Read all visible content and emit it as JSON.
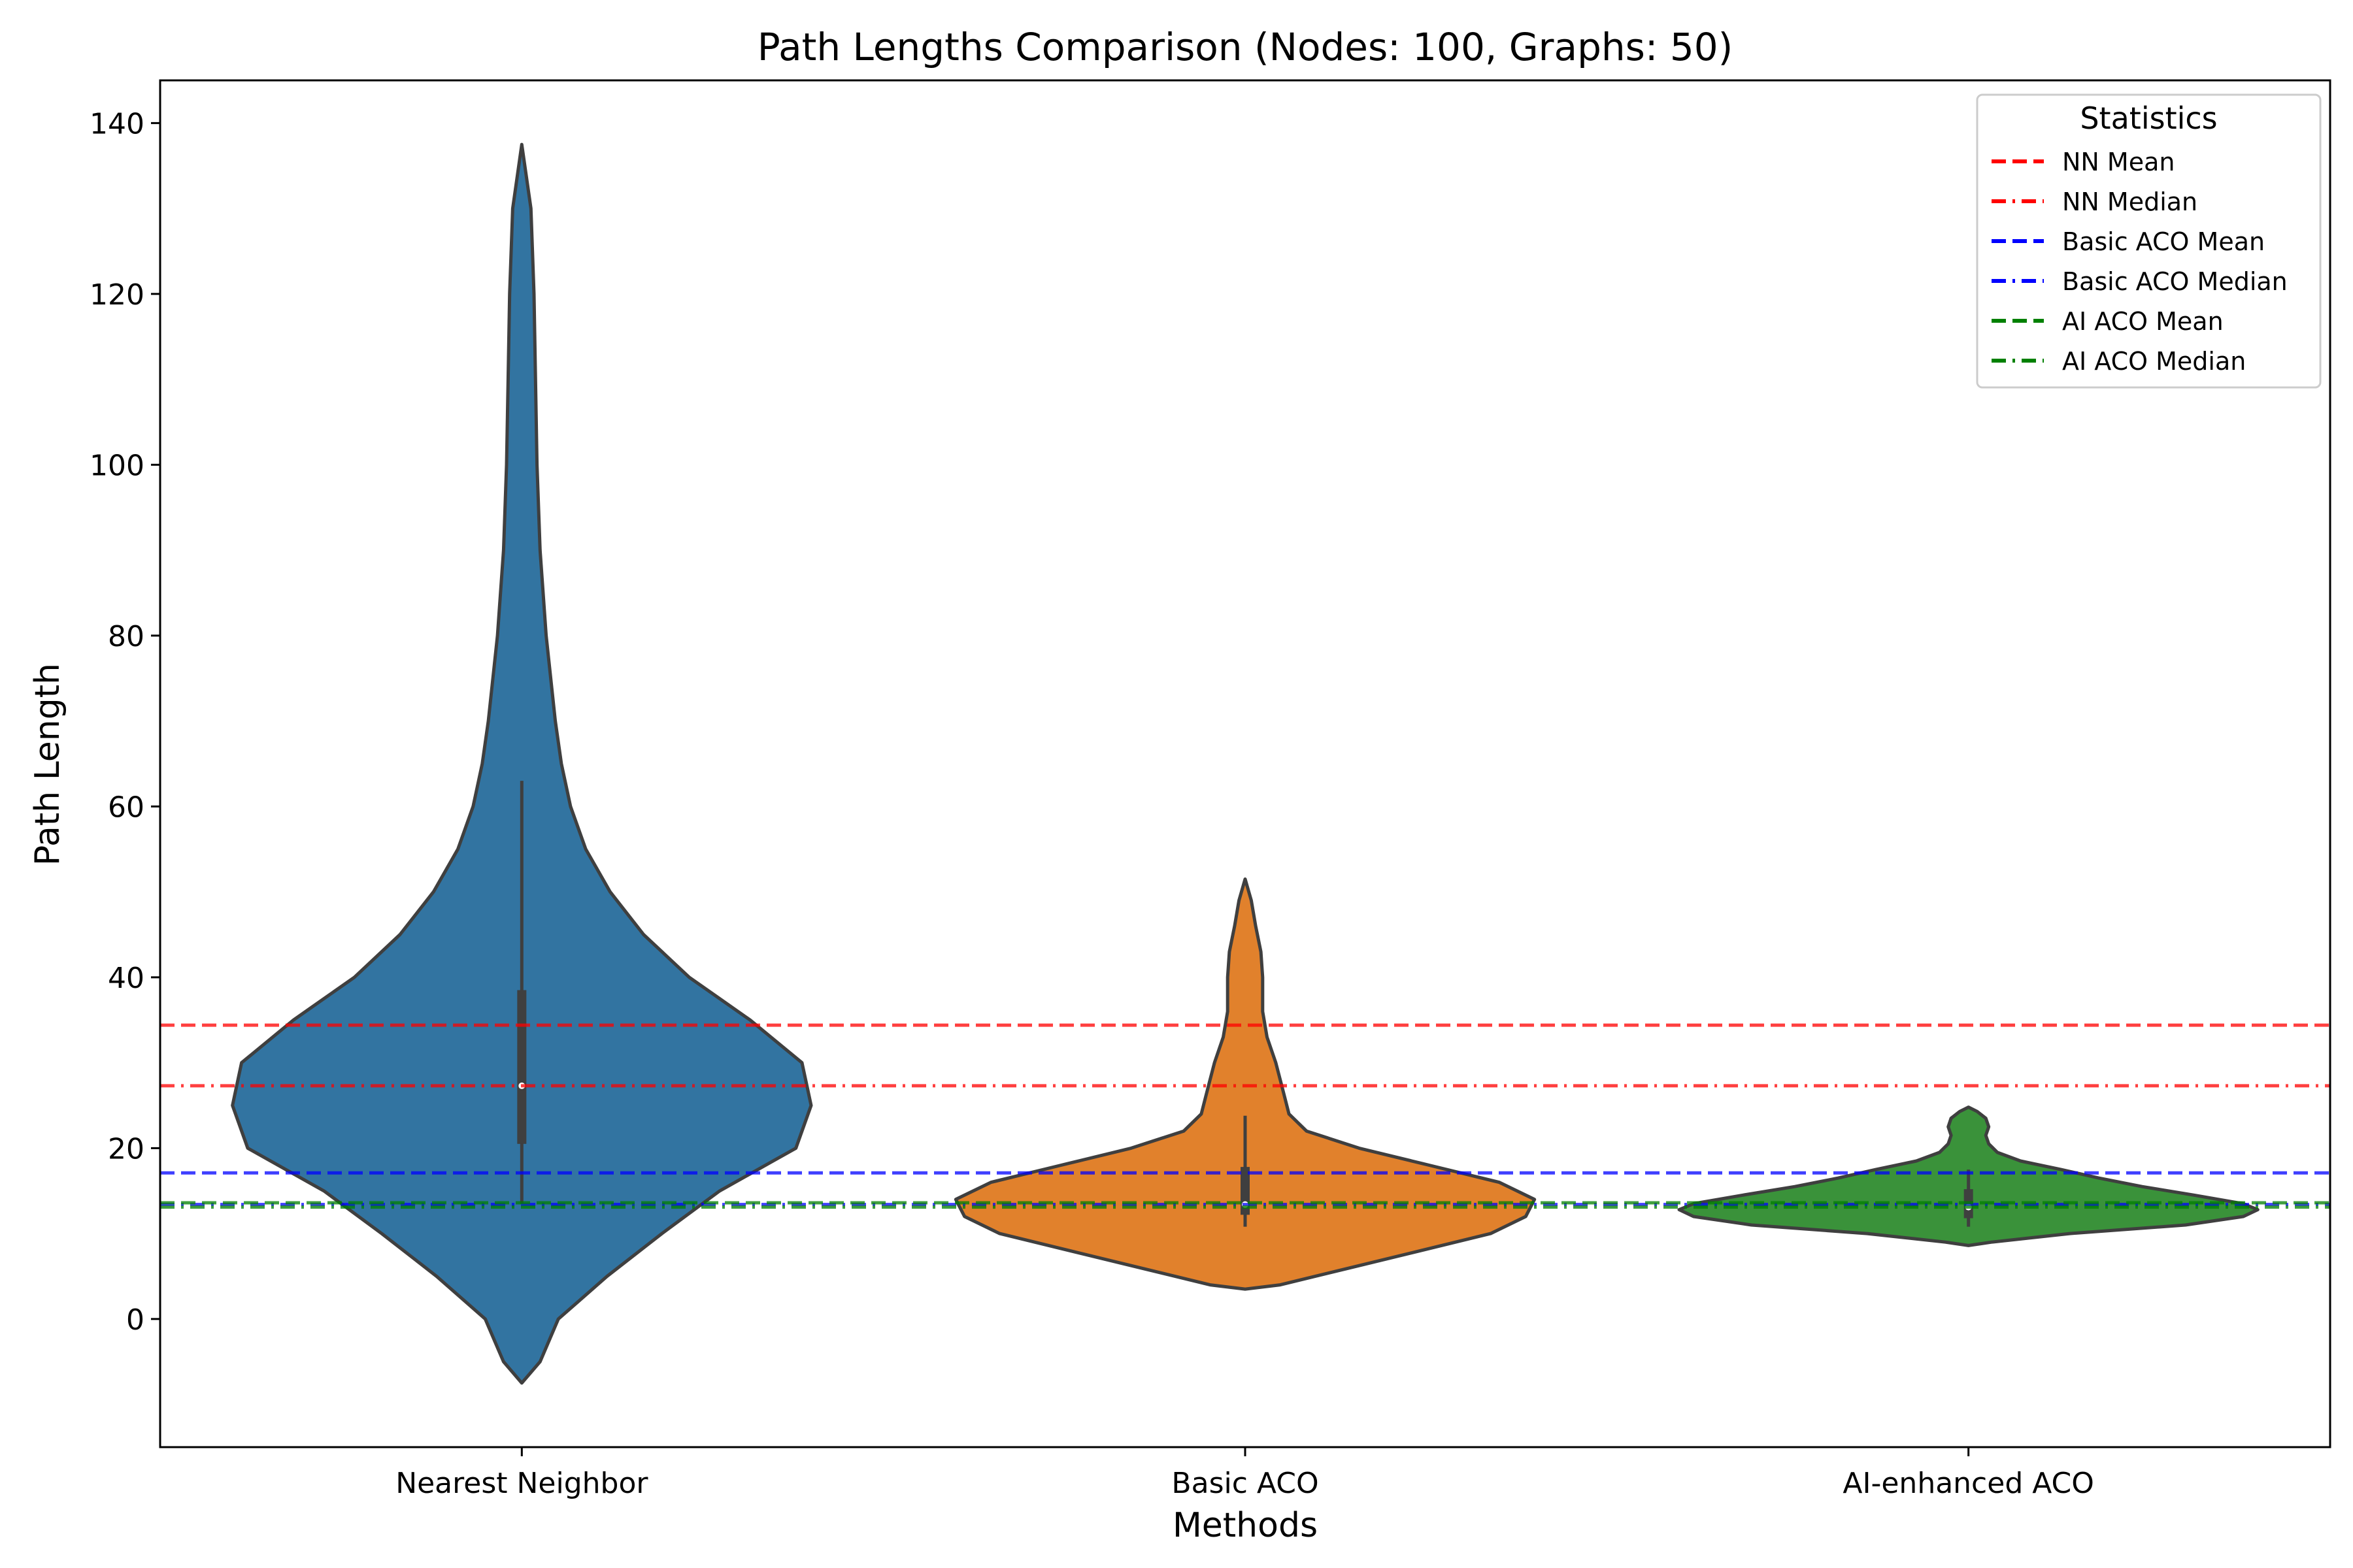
{
  "chart_data": {
    "type": "violin",
    "title": "Path Lengths Comparison (Nodes: 100, Graphs: 50)",
    "xlabel": "Methods",
    "ylabel": "Path Length",
    "categories": [
      "Nearest Neighbor",
      "Basic ACO",
      "AI-enhanced ACO"
    ],
    "ylim": [
      -15,
      145
    ],
    "yticks": [
      0,
      20,
      40,
      60,
      80,
      100,
      120,
      140
    ],
    "grid": false,
    "violins": [
      {
        "name": "Nearest Neighbor",
        "color": "#3274a1",
        "range": [
          -7.5,
          137.5
        ],
        "median": 27.3,
        "q1": 20.5,
        "q3": 38.5,
        "whisker_low": 13.5,
        "whisker_high": 63.0,
        "density_profile": [
          [
            -7.5,
            0.0
          ],
          [
            -5,
            0.006
          ],
          [
            0,
            0.012
          ],
          [
            5,
            0.028
          ],
          [
            10,
            0.046
          ],
          [
            15,
            0.065
          ],
          [
            20,
            0.09
          ],
          [
            25,
            0.095
          ],
          [
            30,
            0.092
          ],
          [
            35,
            0.075
          ],
          [
            40,
            0.055
          ],
          [
            45,
            0.04
          ],
          [
            50,
            0.029
          ],
          [
            55,
            0.021
          ],
          [
            60,
            0.016
          ],
          [
            65,
            0.013
          ],
          [
            70,
            0.011
          ],
          [
            80,
            0.008
          ],
          [
            90,
            0.006
          ],
          [
            100,
            0.005
          ],
          [
            110,
            0.0045
          ],
          [
            120,
            0.004
          ],
          [
            130,
            0.003
          ],
          [
            137.5,
            0.0
          ]
        ]
      },
      {
        "name": "Basic ACO",
        "color": "#e1812c",
        "range": [
          3.5,
          51.5
        ],
        "median": 13.4,
        "q1": 12.2,
        "q3": 17.8,
        "whisker_low": 10.8,
        "whisker_high": 23.8,
        "density_profile": [
          [
            3.5,
            0.0
          ],
          [
            4,
            0.04
          ],
          [
            6,
            0.12
          ],
          [
            8,
            0.2
          ],
          [
            10,
            0.28
          ],
          [
            12,
            0.32
          ],
          [
            14,
            0.33
          ],
          [
            16,
            0.29
          ],
          [
            18,
            0.21
          ],
          [
            20,
            0.13
          ],
          [
            22,
            0.07
          ],
          [
            24,
            0.05
          ],
          [
            26,
            0.045
          ],
          [
            28,
            0.04
          ],
          [
            30,
            0.035
          ],
          [
            33,
            0.025
          ],
          [
            36,
            0.02
          ],
          [
            40,
            0.02
          ],
          [
            43,
            0.018
          ],
          [
            46,
            0.012
          ],
          [
            49,
            0.007
          ],
          [
            51.5,
            0.0
          ]
        ]
      },
      {
        "name": "AI-enhanced ACO",
        "color": "#3a923a",
        "range": [
          8.6,
          24.8
        ],
        "median": 13.1,
        "q1": 11.8,
        "q3": 15.2,
        "whisker_low": 10.8,
        "whisker_high": 17.5,
        "density_profile": [
          [
            8.6,
            0.0
          ],
          [
            9,
            0.08
          ],
          [
            10,
            0.35
          ],
          [
            11,
            0.75
          ],
          [
            12,
            0.95
          ],
          [
            12.8,
            1.0
          ],
          [
            13.5,
            0.95
          ],
          [
            14.5,
            0.78
          ],
          [
            15.5,
            0.6
          ],
          [
            16.5,
            0.45
          ],
          [
            17.5,
            0.32
          ],
          [
            18.5,
            0.18
          ],
          [
            19.5,
            0.1
          ],
          [
            20.5,
            0.07
          ],
          [
            21.5,
            0.06
          ],
          [
            22.5,
            0.07
          ],
          [
            23.5,
            0.06
          ],
          [
            24.3,
            0.03
          ],
          [
            24.8,
            0.0
          ]
        ]
      }
    ],
    "reference_lines": [
      {
        "label": "NN Mean",
        "value": 34.4,
        "color": "#ff0000",
        "style": "dashed"
      },
      {
        "label": "NN Median",
        "value": 27.3,
        "color": "#ff0000",
        "style": "dashdot"
      },
      {
        "label": "Basic ACO Mean",
        "value": 17.1,
        "color": "#0000ff",
        "style": "dashed"
      },
      {
        "label": "Basic ACO Median",
        "value": 13.4,
        "color": "#0000ff",
        "style": "dashdot"
      },
      {
        "label": "AI ACO Mean",
        "value": 13.6,
        "color": "#008000",
        "style": "dashed"
      },
      {
        "label": "AI ACO Median",
        "value": 13.1,
        "color": "#008000",
        "style": "dashdot"
      }
    ],
    "legend": {
      "title": "Statistics",
      "placement": "top-right"
    }
  }
}
